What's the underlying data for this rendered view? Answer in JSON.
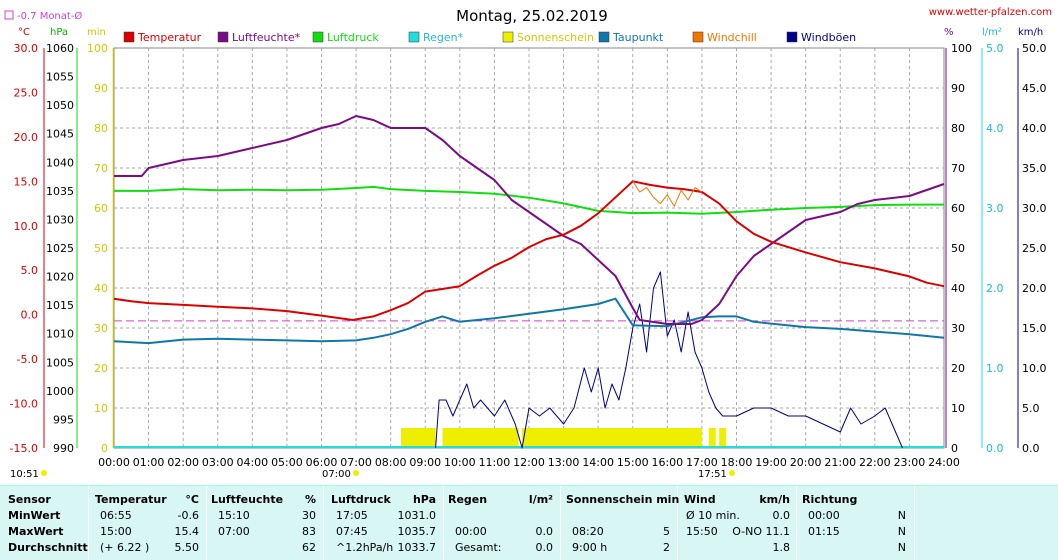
{
  "title": "Montag, 25.02.2019",
  "site": "www.wetter-pfalzen.com",
  "monthly_avg_label": "-0.7 Monat-Ø",
  "units": {
    "temp": "°C",
    "press": "hPa",
    "min": "min",
    "pct": "%",
    "rain": "l/m²",
    "wind": "km/h"
  },
  "legend": [
    {
      "label": "Temperatur",
      "color": "#dd0000"
    },
    {
      "label": "Luftfeuchte*",
      "color": "#7a0d86"
    },
    {
      "label": "Luftdruck",
      "color": "#11dd11"
    },
    {
      "label": "Regen*",
      "color": "#22dddd"
    },
    {
      "label": "Sonnenschein",
      "color": "#eeee00"
    },
    {
      "label": "Taupunkt",
      "color": "#1177aa"
    },
    {
      "label": "Windchill",
      "color": "#ee7700"
    },
    {
      "label": "Windböen",
      "color": "#000088"
    }
  ],
  "colors": {
    "grid": "#a8a8a8",
    "temp": "#dd0000",
    "hum": "#7a0d86",
    "press": "#11dd11",
    "rain": "#22dddd",
    "sun": "#eeee00",
    "dew": "#1177aa",
    "chill": "#ee7700",
    "gust": "#000088",
    "avg": "#cc44cc"
  },
  "sunrise_label": "07:00",
  "sunset_label": "17:51",
  "now_label": "10:51",
  "chart_data": {
    "type": "line",
    "x_labels": [
      "00:00",
      "01:00",
      "02:00",
      "03:00",
      "04:00",
      "05:00",
      "06:00",
      "07:00",
      "08:00",
      "09:00",
      "10:00",
      "11:00",
      "12:00",
      "13:00",
      "14:00",
      "15:00",
      "16:00",
      "17:00",
      "18:00",
      "19:00",
      "20:00",
      "21:00",
      "22:00",
      "23:00",
      "24:00"
    ],
    "axes": {
      "temp": {
        "range": [
          -15,
          30
        ],
        "ticks": [
          "30.0",
          "25.0",
          "20.0",
          "15.0",
          "10.0",
          "5.0",
          "0.0",
          "-5.0",
          "-10.0",
          "-15.0"
        ]
      },
      "press": {
        "range": [
          990,
          1060
        ],
        "ticks": [
          "1060",
          "1055",
          "1050",
          "1045",
          "1040",
          "1035",
          "1030",
          "1025",
          "1020",
          "1015",
          "1010",
          "1005",
          "1000",
          "995",
          "990"
        ]
      },
      "minutes": {
        "range": [
          0,
          100
        ],
        "ticks": [
          "100",
          "90",
          "80",
          "70",
          "60",
          "50",
          "40",
          "30",
          "20",
          "10",
          "0"
        ]
      },
      "pct": {
        "range": [
          0,
          100
        ],
        "ticks": [
          "100",
          "90",
          "80",
          "70",
          "60",
          "50",
          "40",
          "30",
          "20",
          "10",
          "0"
        ]
      },
      "rain": {
        "range": [
          0,
          5
        ],
        "ticks": [
          "5.0",
          "4.0",
          "3.0",
          "2.0",
          "1.0",
          "0.0"
        ]
      },
      "wind": {
        "range": [
          0,
          50
        ],
        "ticks": [
          "50.0",
          "45.0",
          "40.0",
          "35.0",
          "30.0",
          "25.0",
          "20.0",
          "15.0",
          "10.0",
          "5.0",
          "0.0"
        ]
      }
    },
    "monthly_avg_temp": -0.7,
    "series": [
      {
        "name": "Temperatur",
        "axis": "temp",
        "points": [
          [
            0,
            1.8
          ],
          [
            0.5,
            1.5
          ],
          [
            1,
            1.3
          ],
          [
            2,
            1.1
          ],
          [
            3,
            0.9
          ],
          [
            4,
            0.7
          ],
          [
            5,
            0.4
          ],
          [
            6,
            -0.1
          ],
          [
            6.9,
            -0.6
          ],
          [
            7.5,
            -0.2
          ],
          [
            8,
            0.5
          ],
          [
            8.5,
            1.3
          ],
          [
            9,
            2.6
          ],
          [
            10,
            3.2
          ],
          [
            10.5,
            4.4
          ],
          [
            11,
            5.5
          ],
          [
            11.5,
            6.4
          ],
          [
            12,
            7.6
          ],
          [
            12.5,
            8.5
          ],
          [
            13,
            9.0
          ],
          [
            13.5,
            10.0
          ],
          [
            14,
            11.4
          ],
          [
            14.5,
            13.2
          ],
          [
            15,
            15.0
          ],
          [
            15.5,
            14.6
          ],
          [
            16,
            14.3
          ],
          [
            16.5,
            14.1
          ],
          [
            17,
            13.8
          ],
          [
            17.5,
            12.5
          ],
          [
            18,
            10.5
          ],
          [
            18.5,
            9.1
          ],
          [
            19,
            8.2
          ],
          [
            20,
            7.0
          ],
          [
            21,
            5.9
          ],
          [
            22,
            5.2
          ],
          [
            23,
            4.3
          ],
          [
            23.5,
            3.6
          ],
          [
            24,
            3.2
          ]
        ]
      },
      {
        "name": "Luftfeuchte*",
        "axis": "pct",
        "points": [
          [
            0,
            68
          ],
          [
            0.8,
            68
          ],
          [
            1,
            70
          ],
          [
            2,
            72
          ],
          [
            3,
            73
          ],
          [
            4,
            75
          ],
          [
            5,
            77
          ],
          [
            6,
            80
          ],
          [
            6.5,
            81
          ],
          [
            7,
            83
          ],
          [
            7.5,
            82
          ],
          [
            8,
            80
          ],
          [
            9,
            80
          ],
          [
            9.5,
            77
          ],
          [
            10,
            73
          ],
          [
            11,
            67
          ],
          [
            11.5,
            62
          ],
          [
            12,
            59
          ],
          [
            12.5,
            56
          ],
          [
            13,
            53
          ],
          [
            13.5,
            51
          ],
          [
            14,
            47
          ],
          [
            14.5,
            43
          ],
          [
            15,
            35
          ],
          [
            15.2,
            32
          ],
          [
            16,
            31
          ],
          [
            16.7,
            31
          ],
          [
            17,
            32
          ],
          [
            17.5,
            36
          ],
          [
            18,
            43
          ],
          [
            18.5,
            48
          ],
          [
            19,
            51
          ],
          [
            19.5,
            54
          ],
          [
            20,
            57
          ],
          [
            20.5,
            58
          ],
          [
            21,
            59
          ],
          [
            21.5,
            61
          ],
          [
            22,
            62
          ],
          [
            23,
            63
          ],
          [
            24,
            66
          ]
        ]
      },
      {
        "name": "Luftdruck",
        "axis": "press",
        "points": [
          [
            0,
            1035
          ],
          [
            1,
            1035
          ],
          [
            2,
            1035.3
          ],
          [
            3,
            1035.1
          ],
          [
            4,
            1035.2
          ],
          [
            5,
            1035.1
          ],
          [
            6,
            1035.2
          ],
          [
            7,
            1035.5
          ],
          [
            7.5,
            1035.7
          ],
          [
            8,
            1035.3
          ],
          [
            9,
            1035.0
          ],
          [
            10,
            1034.8
          ],
          [
            11,
            1034.5
          ],
          [
            12,
            1033.8
          ],
          [
            13,
            1032.8
          ],
          [
            14,
            1031.5
          ],
          [
            15,
            1031.1
          ],
          [
            16,
            1031.2
          ],
          [
            17,
            1031.0
          ],
          [
            18,
            1031.3
          ],
          [
            19,
            1031.7
          ],
          [
            20,
            1032.0
          ],
          [
            21,
            1032.2
          ],
          [
            22,
            1032.5
          ],
          [
            23,
            1032.6
          ],
          [
            24,
            1032.6
          ]
        ]
      },
      {
        "name": "Taupunkt",
        "axis": "temp",
        "points": [
          [
            0,
            -3.0
          ],
          [
            1,
            -3.2
          ],
          [
            2,
            -2.8
          ],
          [
            3,
            -2.7
          ],
          [
            4,
            -2.8
          ],
          [
            5,
            -2.9
          ],
          [
            6,
            -3.0
          ],
          [
            7,
            -2.9
          ],
          [
            7.5,
            -2.6
          ],
          [
            8,
            -2.2
          ],
          [
            8.5,
            -1.6
          ],
          [
            9,
            -0.8
          ],
          [
            9.5,
            -0.2
          ],
          [
            10,
            -0.8
          ],
          [
            11,
            -0.4
          ],
          [
            12,
            0.1
          ],
          [
            13,
            0.6
          ],
          [
            14,
            1.2
          ],
          [
            14.5,
            1.8
          ],
          [
            15,
            -1.2
          ],
          [
            16,
            -1.3
          ],
          [
            17,
            -0.3
          ],
          [
            17.5,
            -0.2
          ],
          [
            18,
            -0.2
          ],
          [
            18.5,
            -0.8
          ],
          [
            19,
            -1.0
          ],
          [
            20,
            -1.4
          ],
          [
            21,
            -1.6
          ],
          [
            22,
            -1.9
          ],
          [
            23,
            -2.2
          ],
          [
            24,
            -2.6
          ]
        ]
      },
      {
        "name": "Windchill",
        "axis": "temp",
        "points": [
          [
            15,
            15.0
          ],
          [
            15.2,
            13.8
          ],
          [
            15.4,
            14.3
          ],
          [
            15.6,
            13.2
          ],
          [
            15.8,
            12.5
          ],
          [
            16,
            13.5
          ],
          [
            16.2,
            12.2
          ],
          [
            16.4,
            14.0
          ],
          [
            16.6,
            12.9
          ],
          [
            16.8,
            14.3
          ],
          [
            17,
            13.8
          ]
        ]
      },
      {
        "name": "Windböen",
        "axis": "wind",
        "points": [
          [
            9.3,
            0
          ],
          [
            9.4,
            6
          ],
          [
            9.6,
            6
          ],
          [
            9.8,
            4
          ],
          [
            10,
            6
          ],
          [
            10.2,
            8
          ],
          [
            10.4,
            5
          ],
          [
            10.6,
            6
          ],
          [
            11,
            4
          ],
          [
            11.3,
            6
          ],
          [
            11.6,
            3
          ],
          [
            11.8,
            0
          ],
          [
            12,
            5
          ],
          [
            12.3,
            4
          ],
          [
            12.6,
            5
          ],
          [
            13,
            3
          ],
          [
            13.3,
            5
          ],
          [
            13.6,
            10
          ],
          [
            13.8,
            7
          ],
          [
            14,
            10
          ],
          [
            14.2,
            5
          ],
          [
            14.4,
            8
          ],
          [
            14.6,
            6
          ],
          [
            14.8,
            10
          ],
          [
            15,
            15
          ],
          [
            15.2,
            18
          ],
          [
            15.4,
            12
          ],
          [
            15.6,
            20
          ],
          [
            15.8,
            22
          ],
          [
            16,
            14
          ],
          [
            16.2,
            16
          ],
          [
            16.4,
            12
          ],
          [
            16.6,
            17
          ],
          [
            16.8,
            12
          ],
          [
            17,
            10
          ],
          [
            17.2,
            7
          ],
          [
            17.4,
            5
          ],
          [
            17.6,
            4
          ],
          [
            18,
            4
          ],
          [
            18.5,
            5
          ],
          [
            19,
            5
          ],
          [
            19.5,
            4
          ],
          [
            20,
            4
          ],
          [
            20.5,
            3
          ],
          [
            21,
            2
          ],
          [
            21.3,
            5
          ],
          [
            21.6,
            3
          ],
          [
            22,
            4
          ],
          [
            22.3,
            5
          ],
          [
            22.5,
            3
          ],
          [
            22.8,
            0
          ]
        ]
      }
    ],
    "sunshine": {
      "bars": [
        [
          8.3,
          9.3
        ],
        [
          9.5,
          11.7
        ],
        [
          11.8,
          17.0
        ],
        [
          17.2,
          17.4
        ],
        [
          17.5,
          17.7
        ]
      ],
      "value": 5
    }
  },
  "stats": {
    "sensor": {
      "head": "Sensor",
      "rows": [
        "MinWert",
        "MaxWert",
        "Durchschnitt"
      ]
    },
    "temperatur": {
      "head": "Temperatur",
      "unit": "°C",
      "rows": [
        [
          "06:55",
          "-0.6"
        ],
        [
          "15:00",
          "15.4"
        ],
        [
          "(+ 6.22 )",
          "5.50"
        ]
      ]
    },
    "luftfeuchte": {
      "head": "Luftfeuchte",
      "unit": "%",
      "rows": [
        [
          "15:10",
          "30"
        ],
        [
          "07:00",
          "83"
        ],
        [
          "",
          "62"
        ]
      ]
    },
    "luftdruck": {
      "head": "Luftdruck",
      "unit": "hPa",
      "rows": [
        [
          "17:05",
          "1031.0"
        ],
        [
          "07:45",
          "1035.7"
        ],
        [
          "^1.2hPa/h",
          "1033.7"
        ]
      ]
    },
    "regen": {
      "head": "Regen",
      "unit": "l/m²",
      "rows": [
        [
          "",
          ""
        ],
        [
          "00:00",
          "0.0"
        ],
        [
          "Gesamt:",
          "0.0"
        ]
      ]
    },
    "sonne": {
      "head": "Sonnenschein min",
      "rows": [
        [
          "",
          ""
        ],
        [
          "08:20",
          "5"
        ],
        [
          "9:00 h",
          "2"
        ]
      ]
    },
    "wind": {
      "head": "Wind",
      "unit": "km/h",
      "rows": [
        [
          "Ø 10 min.",
          "0.0"
        ],
        [
          "15:50",
          "O-NO 11.1"
        ],
        [
          "",
          "1.8"
        ]
      ]
    },
    "richtung": {
      "head": "Richtung",
      "rows": [
        [
          "00:00",
          "N"
        ],
        [
          "01:15",
          "N"
        ],
        [
          "",
          "N"
        ]
      ]
    }
  }
}
